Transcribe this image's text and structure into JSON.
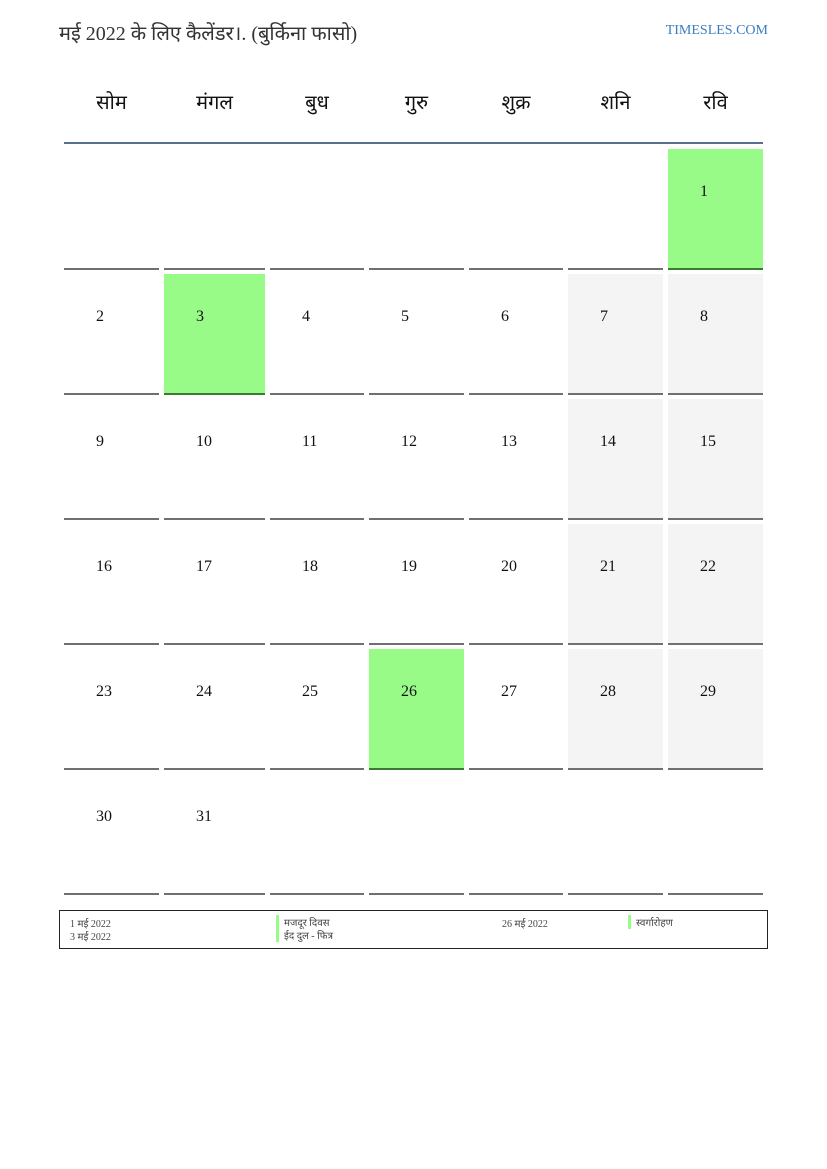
{
  "header": {
    "title": "मई 2022 के लिए कैलेंडर।. (बुर्किना फासो)",
    "site": "TIMESLES.COM"
  },
  "weekdays": [
    "सोम",
    "मंगल",
    "बुध",
    "गुरु",
    "शुक्र",
    "शनि",
    "रवि"
  ],
  "colors": {
    "holiday": "#98fb88",
    "weekend": "#f4f4f4",
    "rule": "#5a6f90"
  },
  "weeks": [
    [
      null,
      null,
      null,
      null,
      null,
      null,
      {
        "d": "1",
        "hol": true
      }
    ],
    [
      {
        "d": "2"
      },
      {
        "d": "3",
        "hol": true
      },
      {
        "d": "4"
      },
      {
        "d": "5"
      },
      {
        "d": "6"
      },
      {
        "d": "7"
      },
      {
        "d": "8"
      }
    ],
    [
      {
        "d": "9"
      },
      {
        "d": "10"
      },
      {
        "d": "11"
      },
      {
        "d": "12"
      },
      {
        "d": "13"
      },
      {
        "d": "14"
      },
      {
        "d": "15"
      }
    ],
    [
      {
        "d": "16"
      },
      {
        "d": "17"
      },
      {
        "d": "18"
      },
      {
        "d": "19"
      },
      {
        "d": "20"
      },
      {
        "d": "21"
      },
      {
        "d": "22"
      }
    ],
    [
      {
        "d": "23"
      },
      {
        "d": "24"
      },
      {
        "d": "25"
      },
      {
        "d": "26",
        "hol": true
      },
      {
        "d": "27"
      },
      {
        "d": "28"
      },
      {
        "d": "29"
      }
    ],
    [
      {
        "d": "30"
      },
      {
        "d": "31"
      },
      null,
      null,
      null,
      null,
      null
    ]
  ],
  "legend": [
    {
      "date": "1 मई 2022",
      "name": "मजदूर दिवस"
    },
    {
      "date": "3 मई 2022",
      "name": "ईद दुल - फित्र"
    },
    {
      "date": "26 मई 2022",
      "name": "स्वर्गारोहण"
    }
  ]
}
